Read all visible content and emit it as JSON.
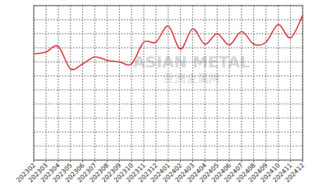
{
  "chart_data": {
    "type": "line",
    "categories": [
      "202302",
      "202303",
      "202304",
      "202305",
      "202306",
      "202307",
      "202308",
      "202309",
      "202310",
      "202311",
      "202312",
      "202401",
      "202402",
      "202403",
      "202404",
      "202405",
      "202406",
      "202407",
      "202408",
      "202409",
      "202410",
      "202411",
      "202412"
    ],
    "series": [
      {
        "name": null,
        "color": "#d7181f",
        "values": [
          7.55,
          7.7,
          8.1,
          6.5,
          6.85,
          7.35,
          7.1,
          7.0,
          6.85,
          8.4,
          8.4,
          9.55,
          7.9,
          9.35,
          8.25,
          9.0,
          8.2,
          9.15,
          8.25,
          8.4,
          9.65,
          8.7,
          10.3
        ]
      }
    ],
    "ylim": [
      0,
      11
    ],
    "yticks": [
      0,
      1,
      2,
      3,
      4,
      5,
      6,
      7,
      8,
      9,
      10,
      11
    ],
    "grid": true,
    "tick_labels": "x",
    "annotations": [
      "ASIAN METAL",
      "亚洲金属网"
    ]
  }
}
